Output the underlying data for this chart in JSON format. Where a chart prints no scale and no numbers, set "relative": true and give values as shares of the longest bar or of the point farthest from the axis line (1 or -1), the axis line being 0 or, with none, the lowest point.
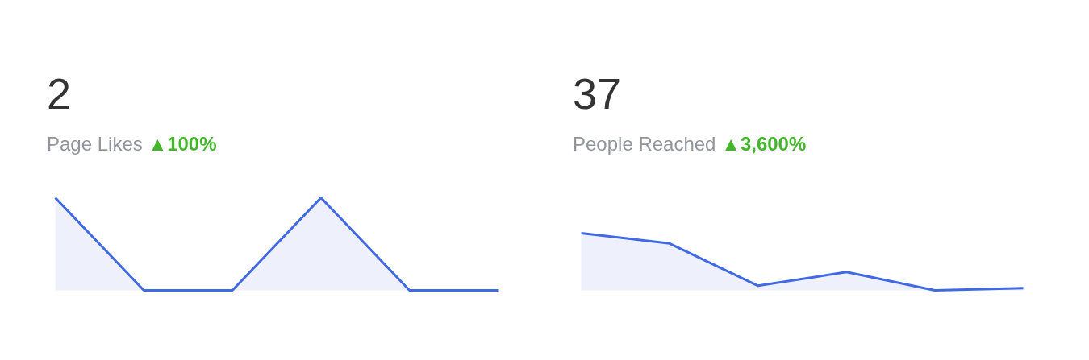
{
  "chart_data": [
    {
      "type": "area",
      "title": "2",
      "subtitle": "Page Likes",
      "annotations": [
        "▲100%"
      ],
      "relative": true,
      "categories": [
        null,
        null,
        null,
        null,
        null,
        null
      ],
      "series": [
        {
          "color": "#4169e1",
          "values": [
            1,
            0,
            0,
            1,
            0,
            0
          ]
        }
      ]
    },
    {
      "type": "area",
      "title": "37",
      "subtitle": "People Reached",
      "annotations": [
        "▲3,600%"
      ],
      "relative": true,
      "categories": [
        null,
        null,
        null,
        null,
        null,
        null
      ],
      "series": [
        {
          "color": "#4169e1",
          "values": [
            1,
            0.82,
            0.08,
            0.32,
            0,
            0.04
          ]
        }
      ]
    }
  ]
}
